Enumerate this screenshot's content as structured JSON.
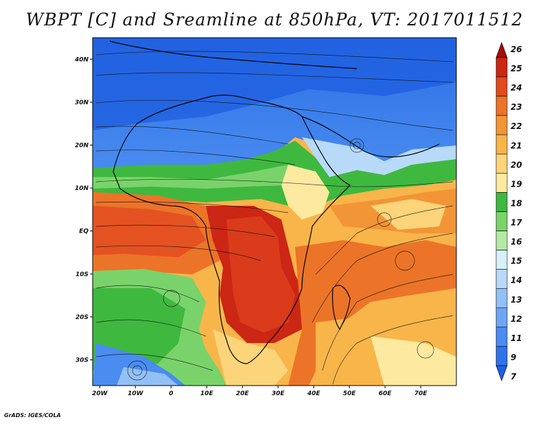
{
  "title": "WBPT [C] and Sreamline at 850hPa, VT: 2017011512",
  "credit": "GrADS: IGES/COLA",
  "map": {
    "lon_range": [
      -22,
      80
    ],
    "lat_range": [
      -36,
      45
    ],
    "x_ticks": [
      "20W",
      "10W",
      "0",
      "10E",
      "20E",
      "30E",
      "40E",
      "50E",
      "60E",
      "70E"
    ],
    "x_tick_lons": [
      -20,
      -10,
      0,
      10,
      20,
      30,
      40,
      50,
      60,
      70
    ],
    "y_ticks": [
      "40N",
      "30N",
      "20N",
      "10N",
      "EQ",
      "10S",
      "20S",
      "30S"
    ],
    "y_tick_lats": [
      40,
      30,
      20,
      10,
      0,
      -10,
      -20,
      -30
    ],
    "field": "WBPT",
    "overlay": "streamlines"
  },
  "colorbar": {
    "labels": [
      "7",
      "9",
      "11",
      "12",
      "13",
      "14",
      "15",
      "16",
      "17",
      "18",
      "19",
      "20",
      "21",
      "22",
      "23",
      "24",
      "25",
      "26"
    ],
    "colors": [
      "#1f5fe0",
      "#2f73ea",
      "#4a8cf0",
      "#6ea6f3",
      "#92c0f6",
      "#b8daf8",
      "#d8f0f8",
      "#b4eaa4",
      "#79d36a",
      "#3fb83f",
      "#fdeaa0",
      "#fcd47a",
      "#f8b54a",
      "#f29536",
      "#ec7428",
      "#e24a1f",
      "#cc2614",
      "#a50d08"
    ]
  }
}
